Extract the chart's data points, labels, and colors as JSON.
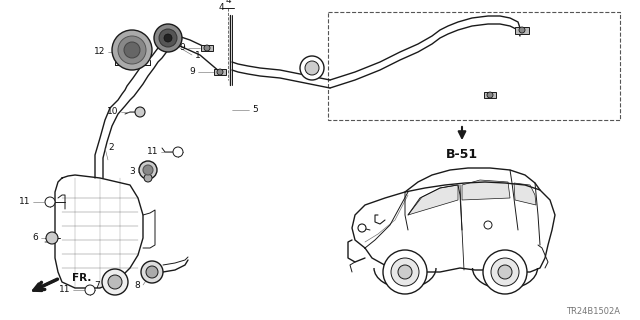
{
  "bg_color": "#ffffff",
  "line_color": "#1a1a1a",
  "label_color": "#111111",
  "part_code": "TR24B1502A",
  "ref_label": "B-51",
  "figsize": [
    6.4,
    3.2
  ],
  "dpi": 100,
  "xlim": [
    0,
    640
  ],
  "ylim": [
    0,
    320
  ],
  "fr_text": "FR.",
  "label_fs": 6.5,
  "b51_fs": 9
}
